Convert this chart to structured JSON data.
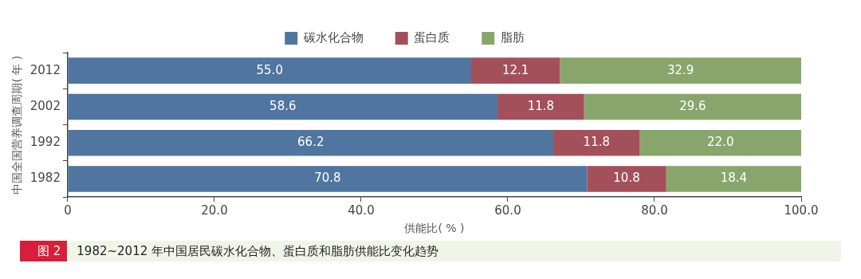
{
  "chart_data": {
    "type": "bar",
    "orientation": "horizontal",
    "stacked": true,
    "title": "图 2",
    "subtitle": "1982~2012 年中国居民碳水化合物、蛋白质和脂肪供能比变化趋势",
    "xlabel": "供能比( % )",
    "ylabel": "中国全国营养调查周期( 年 )",
    "categories": [
      "2012",
      "2002",
      "1992",
      "1982"
    ],
    "series": [
      {
        "name": "碳水化合物",
        "color": "#4f75a0",
        "values": [
          55.0,
          58.6,
          66.2,
          70.8
        ],
        "value_labels": [
          "55.0",
          "58.6",
          "66.2",
          "70.8"
        ]
      },
      {
        "name": "蛋白质",
        "color": "#a4505b",
        "values": [
          12.1,
          11.8,
          11.8,
          10.8
        ],
        "value_labels": [
          "12.1",
          "11.8",
          "11.8",
          "10.8"
        ]
      },
      {
        "name": "脂肪",
        "color": "#88a66b",
        "values": [
          32.9,
          29.6,
          22.0,
          18.4
        ],
        "value_labels": [
          "32.9",
          "29.6",
          "22.0",
          "18.4"
        ]
      }
    ],
    "xlim": [
      0,
      100
    ],
    "xticks": [
      0,
      {
        "value": 20,
        "label": "20.0"
      },
      {
        "value": 40,
        "label": "40.0"
      },
      {
        "value": 60,
        "label": "60.0"
      },
      {
        "value": 80,
        "label": "80.0"
      },
      {
        "value": 100,
        "label": "100.0"
      }
    ],
    "grid": false,
    "legend": "top"
  }
}
